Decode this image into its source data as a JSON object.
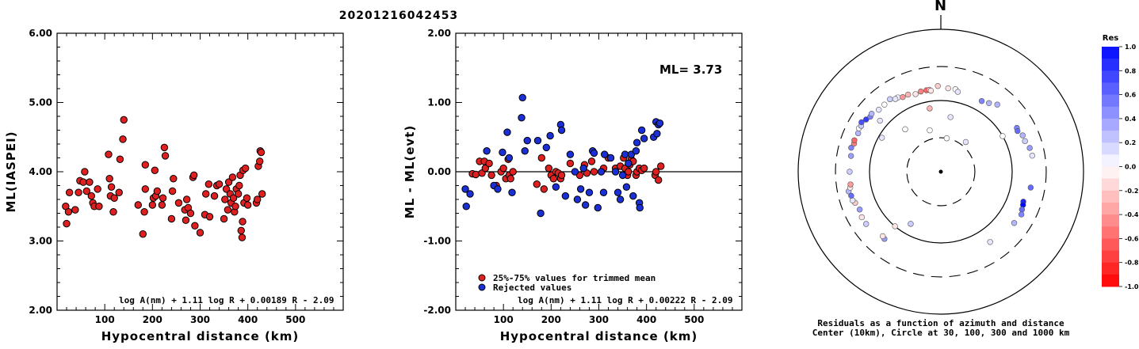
{
  "title": "20201216042453",
  "colors": {
    "red": "#e02020",
    "blue": "#1a2fd6",
    "black": "#000000"
  },
  "chart_data": [
    {
      "type": "scatter",
      "id": "ml-vs-distance",
      "xlabel": "Hypocentral distance (km)",
      "ylabel": "ML(IASPEI)",
      "xlim": [
        0,
        600
      ],
      "ylim": [
        2.0,
        6.0
      ],
      "xticks": [
        "100",
        "200",
        "300",
        "400",
        "500"
      ],
      "yticks": [
        "2.00",
        "3.00",
        "4.00",
        "5.00",
        "6.00"
      ],
      "formula": "log A(nm) + 1.11 log R + 0.00189 R - 2.09",
      "series": [
        {
          "color": "red",
          "points": [
            [
              18,
              3.5
            ],
            [
              20,
              3.25
            ],
            [
              24,
              3.42
            ],
            [
              26,
              3.7
            ],
            [
              38,
              3.45
            ],
            [
              45,
              3.7
            ],
            [
              48,
              3.87
            ],
            [
              55,
              3.85
            ],
            [
              58,
              4.0
            ],
            [
              62,
              3.72
            ],
            [
              68,
              3.85
            ],
            [
              72,
              3.65
            ],
            [
              75,
              3.55
            ],
            [
              78,
              3.5
            ],
            [
              85,
              3.75
            ],
            [
              88,
              3.5
            ],
            [
              108,
              4.25
            ],
            [
              110,
              3.9
            ],
            [
              112,
              3.65
            ],
            [
              114,
              3.78
            ],
            [
              118,
              3.42
            ],
            [
              120,
              3.62
            ],
            [
              130,
              3.7
            ],
            [
              132,
              4.18
            ],
            [
              138,
              4.47
            ],
            [
              140,
              4.75
            ],
            [
              170,
              3.52
            ],
            [
              180,
              3.1
            ],
            [
              183,
              3.42
            ],
            [
              185,
              3.75
            ],
            [
              185,
              4.1
            ],
            [
              200,
              3.52
            ],
            [
              202,
              3.62
            ],
            [
              205,
              4.02
            ],
            [
              207,
              3.65
            ],
            [
              210,
              3.72
            ],
            [
              220,
              3.52
            ],
            [
              222,
              3.62
            ],
            [
              225,
              4.35
            ],
            [
              227,
              4.23
            ],
            [
              240,
              3.32
            ],
            [
              242,
              3.72
            ],
            [
              244,
              3.9
            ],
            [
              255,
              3.55
            ],
            [
              268,
              3.45
            ],
            [
              270,
              3.3
            ],
            [
              272,
              3.6
            ],
            [
              275,
              3.48
            ],
            [
              280,
              3.4
            ],
            [
              285,
              3.92
            ],
            [
              287,
              3.95
            ],
            [
              289,
              3.22
            ],
            [
              300,
              3.12
            ],
            [
              310,
              3.38
            ],
            [
              312,
              3.68
            ],
            [
              318,
              3.82
            ],
            [
              320,
              3.35
            ],
            [
              330,
              3.65
            ],
            [
              335,
              3.8
            ],
            [
              340,
              3.82
            ],
            [
              350,
              3.32
            ],
            [
              352,
              3.6
            ],
            [
              355,
              3.75
            ],
            [
              358,
              3.45
            ],
            [
              360,
              3.85
            ],
            [
              363,
              3.68
            ],
            [
              365,
              3.55
            ],
            [
              368,
              3.92
            ],
            [
              370,
              3.62
            ],
            [
              372,
              3.42
            ],
            [
              374,
              3.5
            ],
            [
              376,
              3.75
            ],
            [
              380,
              3.68
            ],
            [
              382,
              3.8
            ],
            [
              384,
              3.95
            ],
            [
              386,
              3.15
            ],
            [
              388,
              3.05
            ],
            [
              389,
              3.28
            ],
            [
              390,
              4.02
            ],
            [
              392,
              3.55
            ],
            [
              395,
              4.05
            ],
            [
              398,
              3.62
            ],
            [
              400,
              3.52
            ],
            [
              418,
              3.55
            ],
            [
              420,
              3.6
            ],
            [
              422,
              4.08
            ],
            [
              425,
              4.15
            ],
            [
              426,
              4.3
            ],
            [
              428,
              4.28
            ],
            [
              430,
              3.68
            ]
          ]
        }
      ]
    },
    {
      "type": "scatter",
      "id": "residual-vs-distance",
      "xlabel": "Hypocentral distance (km)",
      "ylabel": "ML - ML(evt)",
      "xlim": [
        0,
        600
      ],
      "ylim": [
        -2.0,
        2.0
      ],
      "xticks": [
        "100",
        "200",
        "300",
        "400",
        "500"
      ],
      "yticks": [
        "-2.00",
        "-1.00",
        "0.00",
        "1.00",
        "2.00"
      ],
      "annotation": "ML=  3.73",
      "formula": "log A(nm) + 1.11 log R + 0.00222 R - 2.09",
      "legend": [
        {
          "label": "25%-75% values for trimmed mean",
          "color": "red"
        },
        {
          "label": "Rejected values",
          "color": "blue"
        }
      ],
      "series": [
        {
          "name": "25%-75% values for trimmed mean",
          "color": "red",
          "points": [
            [
              35,
              -0.03
            ],
            [
              42,
              -0.04
            ],
            [
              50,
              0.15
            ],
            [
              55,
              -0.02
            ],
            [
              60,
              0.15
            ],
            [
              62,
              0.05
            ],
            [
              70,
              0.12
            ],
            [
              75,
              -0.05
            ],
            [
              85,
              -0.2
            ],
            [
              95,
              0.0
            ],
            [
              100,
              0.05
            ],
            [
              105,
              -0.1
            ],
            [
              110,
              0.18
            ],
            [
              112,
              -0.05
            ],
            [
              115,
              -0.1
            ],
            [
              120,
              0.0
            ],
            [
              170,
              -0.18
            ],
            [
              180,
              0.2
            ],
            [
              185,
              -0.25
            ],
            [
              195,
              0.05
            ],
            [
              200,
              -0.05
            ],
            [
              205,
              -0.1
            ],
            [
              210,
              0.0
            ],
            [
              215,
              -0.02
            ],
            [
              220,
              -0.1
            ],
            [
              222,
              -0.05
            ],
            [
              240,
              0.12
            ],
            [
              260,
              -0.05
            ],
            [
              270,
              0.1
            ],
            [
              275,
              -0.02
            ],
            [
              285,
              0.15
            ],
            [
              290,
              0.0
            ],
            [
              310,
              0.05
            ],
            [
              320,
              0.2
            ],
            [
              335,
              0.05
            ],
            [
              345,
              0.08
            ],
            [
              352,
              0.2
            ],
            [
              355,
              0.05
            ],
            [
              360,
              -0.05
            ],
            [
              362,
              0.0
            ],
            [
              365,
              0.1
            ],
            [
              368,
              0.18
            ],
            [
              372,
              0.15
            ],
            [
              378,
              -0.05
            ],
            [
              380,
              0.0
            ],
            [
              385,
              0.05
            ],
            [
              390,
              0.02
            ],
            [
              395,
              0.05
            ],
            [
              418,
              -0.05
            ],
            [
              420,
              0.0
            ],
            [
              425,
              -0.12
            ],
            [
              430,
              0.08
            ]
          ]
        },
        {
          "name": "Rejected values",
          "color": "blue",
          "points": [
            [
              20,
              -0.25
            ],
            [
              22,
              -0.5
            ],
            [
              30,
              -0.32
            ],
            [
              65,
              0.3
            ],
            [
              80,
              -0.2
            ],
            [
              88,
              -0.25
            ],
            [
              98,
              0.28
            ],
            [
              108,
              0.57
            ],
            [
              112,
              0.2
            ],
            [
              118,
              -0.3
            ],
            [
              138,
              0.78
            ],
            [
              140,
              1.07
            ],
            [
              145,
              0.3
            ],
            [
              150,
              0.45
            ],
            [
              172,
              0.45
            ],
            [
              178,
              -0.6
            ],
            [
              190,
              0.35
            ],
            [
              198,
              0.52
            ],
            [
              210,
              -0.22
            ],
            [
              220,
              0.68
            ],
            [
              222,
              0.6
            ],
            [
              230,
              -0.35
            ],
            [
              240,
              0.25
            ],
            [
              250,
              0.0
            ],
            [
              255,
              -0.4
            ],
            [
              262,
              -0.25
            ],
            [
              268,
              0.05
            ],
            [
              272,
              -0.48
            ],
            [
              280,
              -0.3
            ],
            [
              287,
              0.3
            ],
            [
              290,
              0.27
            ],
            [
              298,
              -0.52
            ],
            [
              305,
              0.0
            ],
            [
              310,
              -0.3
            ],
            [
              312,
              0.25
            ],
            [
              325,
              0.2
            ],
            [
              335,
              0.0
            ],
            [
              340,
              -0.3
            ],
            [
              345,
              -0.4
            ],
            [
              350,
              -0.05
            ],
            [
              355,
              0.25
            ],
            [
              358,
              -0.22
            ],
            [
              362,
              0.12
            ],
            [
              368,
              0.25
            ],
            [
              372,
              -0.35
            ],
            [
              378,
              0.3
            ],
            [
              380,
              0.42
            ],
            [
              385,
              -0.45
            ],
            [
              386,
              -0.52
            ],
            [
              390,
              0.6
            ],
            [
              395,
              0.48
            ],
            [
              415,
              0.5
            ],
            [
              420,
              0.72
            ],
            [
              422,
              0.55
            ],
            [
              425,
              0.68
            ],
            [
              428,
              0.7
            ]
          ]
        }
      ]
    },
    {
      "type": "scatter",
      "id": "azimuth-polar",
      "north_label": "N",
      "caption_line1": "Residuals as a function of azimuth and distance",
      "caption_line2": "Center (10km), Circle at 30, 100, 300 and 1000 km",
      "rings_km": [
        30,
        100,
        300,
        1000
      ],
      "colorbar_title": "Res",
      "colorbar_ticks": [
        "1.0",
        "0.8",
        "0.6",
        "0.4",
        "0.2",
        "0.0",
        "-0.2",
        "-0.4",
        "-0.6",
        "-0.8",
        "-1.0"
      ],
      "points_az_dist_res": [
        [
          330,
          160,
          0.05
        ],
        [
          333,
          150,
          -0.4
        ],
        [
          337,
          150,
          -0.3
        ],
        [
          342,
          140,
          -0.1
        ],
        [
          346,
          145,
          -0.5
        ],
        [
          350,
          145,
          -0.6
        ],
        [
          352,
          145,
          -0.3
        ],
        [
          353,
          140,
          -0.1
        ],
        [
          358,
          160,
          -0.2
        ],
        [
          5,
          150,
          -0.1
        ],
        [
          10,
          150,
          0.0
        ],
        [
          12,
          140,
          0.1
        ],
        [
          30,
          140,
          0.5
        ],
        [
          35,
          150,
          0.3
        ],
        [
          40,
          170,
          0.3
        ],
        [
          60,
          170,
          0.5
        ],
        [
          62,
          165,
          0.6
        ],
        [
          66,
          180,
          0.3
        ],
        [
          70,
          180,
          0.2
        ],
        [
          75,
          195,
          0.4
        ],
        [
          80,
          200,
          0.1
        ],
        [
          100,
          190,
          0.6
        ],
        [
          110,
          170,
          0.9
        ],
        [
          112,
          175,
          1.0
        ],
        [
          115,
          180,
          0.6
        ],
        [
          118,
          190,
          0.5
        ],
        [
          125,
          180,
          0.3
        ],
        [
          145,
          160,
          0.1
        ],
        [
          220,
          170,
          0.4
        ],
        [
          222,
          165,
          -0.1
        ],
        [
          235,
          190,
          0.2
        ],
        [
          240,
          190,
          -0.1
        ],
        [
          245,
          180,
          0.4
        ],
        [
          250,
          190,
          -0.2
        ],
        [
          252,
          200,
          0.1
        ],
        [
          255,
          200,
          0.6
        ],
        [
          258,
          210,
          0.3
        ],
        [
          260,
          195,
          -0.1
        ],
        [
          262,
          190,
          -0.4
        ],
        [
          270,
          190,
          0.2
        ],
        [
          280,
          190,
          0.4
        ],
        [
          285,
          200,
          0.5
        ],
        [
          288,
          190,
          -0.5
        ],
        [
          290,
          195,
          -0.6
        ],
        [
          295,
          190,
          0.3
        ],
        [
          298,
          200,
          0.0
        ],
        [
          300,
          195,
          0.2
        ],
        [
          302,
          205,
          0.7
        ],
        [
          305,
          190,
          0.8
        ],
        [
          308,
          180,
          0.5
        ],
        [
          310,
          185,
          0.3
        ],
        [
          315,
          170,
          0.1
        ],
        [
          320,
          170,
          0.0
        ],
        [
          325,
          175,
          0.2
        ],
        [
          328,
          160,
          0.1
        ],
        [
          10,
          30,
          0.0
        ],
        [
          345,
          40,
          0.0
        ],
        [
          350,
          80,
          -0.3
        ],
        [
          60,
          100,
          0.0
        ],
        [
          300,
          90,
          0.1
        ],
        [
          320,
          60,
          0.0
        ],
        [
          10,
          60,
          0.1
        ],
        [
          40,
          35,
          0.1
        ],
        [
          220,
          100,
          -0.1
        ],
        [
          210,
          70,
          0.2
        ],
        [
          310,
          130,
          0.1
        ]
      ]
    }
  ]
}
